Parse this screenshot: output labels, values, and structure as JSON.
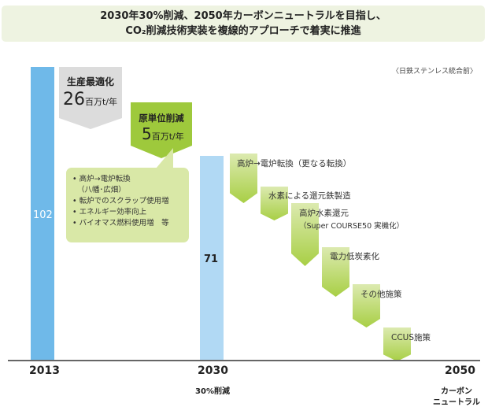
{
  "title": {
    "line1": "2030年30%削減、2050年カーボンニュートラルを目指し、",
    "line2": "CO₂削減技術実装を複線的アプローチで着実に推進"
  },
  "note": "〈日鉄ステンレス統合前〉",
  "bars": [
    {
      "year": "2013",
      "value": 102
    },
    {
      "year": "2030",
      "value": 71
    }
  ],
  "value_max": 102,
  "bar_colors": {
    "2013": "#6fb9e9",
    "2030": "#b1d9f4"
  },
  "callouts": {
    "production": {
      "title": "生産最適化",
      "value": "26",
      "unit": "百万t/年",
      "color": "#dcdcdc"
    },
    "unit_reduction": {
      "title": "原単位削減",
      "value": "5",
      "unit": "百万t/年",
      "color": "#9ec93c"
    }
  },
  "bubble_items": [
    "高炉→電炉転換",
    "（八幡･広畑）",
    "転炉でのスクラップ使用増",
    "エネルギー効率向上",
    "バイオマス燃料使用増　等"
  ],
  "measures": [
    "高炉→電炉転換（更なる転換）",
    "水素による還元鉄製造",
    "高炉水素還元",
    "（Super COURSE50 実機化）",
    "電力低炭素化",
    "その他施策",
    "CCUS施策"
  ],
  "axis": {
    "y2013": "2013",
    "y2030": "2030",
    "y2050": "2050",
    "sub2030": "30%削減",
    "sub2050_1": "カーボン",
    "sub2050_2": "ニュートラル"
  }
}
